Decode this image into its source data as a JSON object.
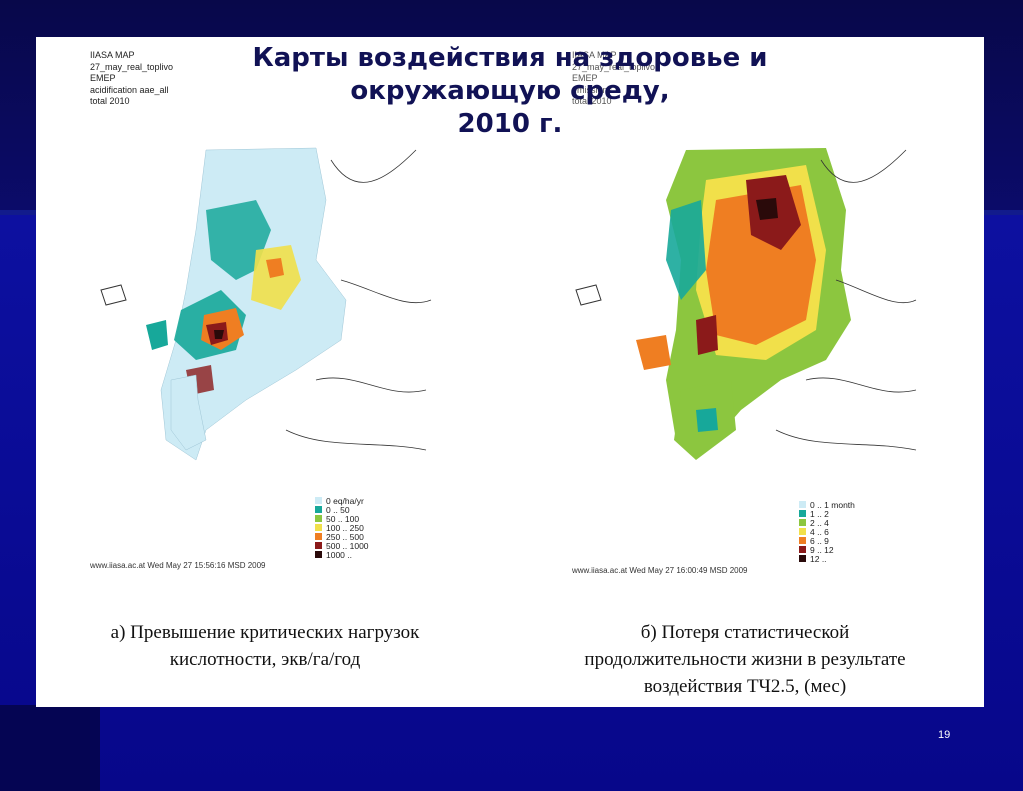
{
  "title": {
    "line1": "Карты воздействия на здоровье и",
    "line2": "окружающую среду,",
    "line3": "2010 г."
  },
  "map_left": {
    "meta": [
      "IIASA MAP",
      "27_may_real_toplivo",
      "EMEP",
      "acidification aae_all",
      "total 2010"
    ],
    "legend": [
      {
        "label": "0 eq/ha/yr",
        "color": "#cdebf5"
      },
      {
        "label": "0 .. 50",
        "color": "#17a89a"
      },
      {
        "label": "50 .. 100",
        "color": "#8cc63f"
      },
      {
        "label": "100 .. 250",
        "color": "#f1e04a"
      },
      {
        "label": "250 .. 500",
        "color": "#ef7e22"
      },
      {
        "label": "500 .. 1000",
        "color": "#8b1a1a"
      },
      {
        "label": "1000 ..",
        "color": "#2a0a0a"
      }
    ],
    "footer": "www.iiasa.ac.at  Wed May 27 15:56:16 MSD 2009",
    "caption": [
      "а) Превышение критических нагрузок",
      "кислотности, экв/га/год"
    ]
  },
  "map_right": {
    "meta": [
      "IIASA MAP",
      "27_may_real_toplivo",
      "EMEP",
      "emissions",
      "total 2010"
    ],
    "legend": [
      {
        "label": "0 .. 1 month",
        "color": "#cdebf5"
      },
      {
        "label": "1 .. 2",
        "color": "#17a89a"
      },
      {
        "label": "2 .. 4",
        "color": "#8cc63f"
      },
      {
        "label": "4 .. 6",
        "color": "#f1e04a"
      },
      {
        "label": "6 .. 9",
        "color": "#ef7e22"
      },
      {
        "label": "9 .. 12",
        "color": "#8b1a1a"
      },
      {
        "label": "12 ..",
        "color": "#2a0a0a"
      }
    ],
    "footer": "www.iiasa.ac.at  Wed May 27 16:00:49 MSD 2009",
    "caption": [
      "б) Потеря статистической",
      "продолжительности жизни в результате",
      "воздействия ТЧ2.5, (мес)"
    ]
  },
  "page_number": "19"
}
